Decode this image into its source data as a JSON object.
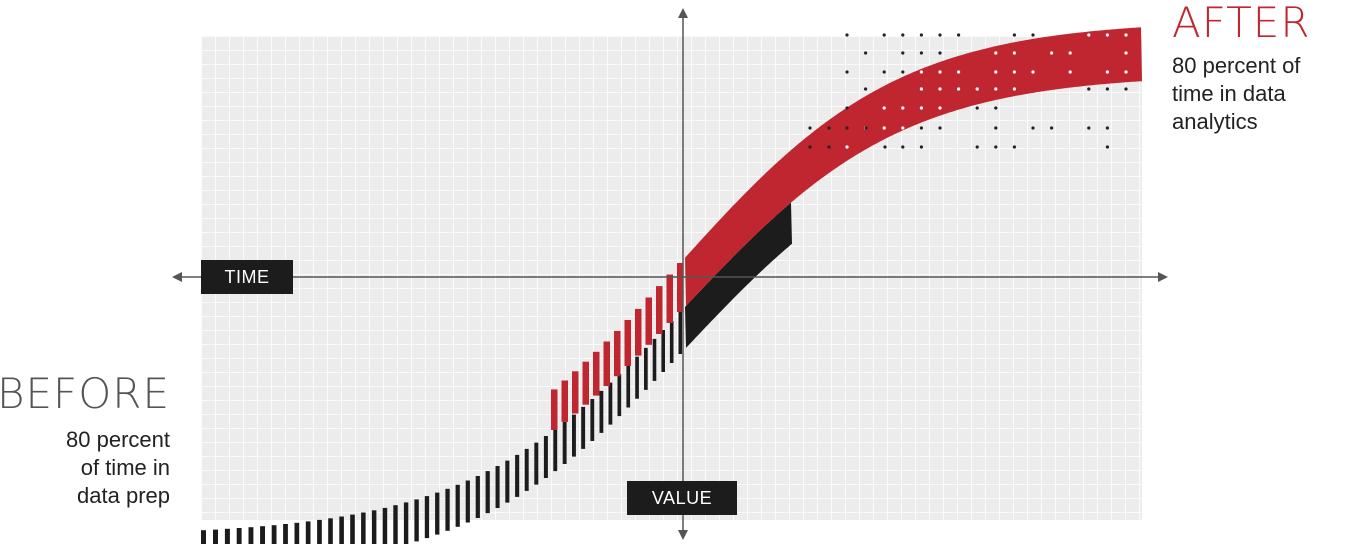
{
  "colors": {
    "accent_red": "#c0262f",
    "ink_black": "#1c1c1c",
    "grid_bg": "#ececec",
    "grid_line": "#ffffff",
    "axis": "#555555",
    "heading_gray": "#555555"
  },
  "after": {
    "heading": "AFTER",
    "caption_lines": [
      "80 percent of",
      "time in data",
      "analytics"
    ]
  },
  "before": {
    "heading": "BEFORE",
    "caption_lines": [
      "80 percent",
      "of time in",
      "data prep"
    ]
  },
  "axes": {
    "horizontal_label": "TIME",
    "vertical_label": "VALUE"
  }
}
